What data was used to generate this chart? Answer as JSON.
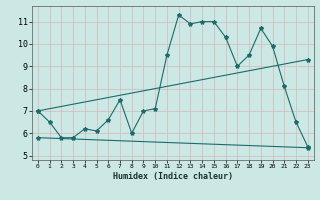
{
  "title": "",
  "xlabel": "Humidex (Indice chaleur)",
  "background_color": "#cce8e4",
  "grid_color": "#b8d8d4",
  "line_color": "#1a6b6b",
  "x_ticks": [
    0,
    1,
    2,
    3,
    4,
    5,
    6,
    7,
    8,
    9,
    10,
    11,
    12,
    13,
    14,
    15,
    16,
    17,
    18,
    19,
    20,
    21,
    22,
    23
  ],
  "y_ticks": [
    5,
    6,
    7,
    8,
    9,
    10,
    11
  ],
  "ylim": [
    4.8,
    11.7
  ],
  "xlim": [
    -0.5,
    23.5
  ],
  "series1": [
    7.0,
    6.5,
    5.8,
    5.8,
    6.2,
    6.1,
    6.6,
    7.5,
    6.0,
    7.0,
    7.1,
    9.5,
    11.3,
    10.9,
    11.0,
    11.0,
    10.3,
    9.0,
    9.5,
    10.7,
    9.9,
    8.1,
    6.5,
    5.4
  ],
  "series2_x": [
    0,
    23
  ],
  "series2_y": [
    7.0,
    9.3
  ],
  "series3_x": [
    0,
    23
  ],
  "series3_y": [
    5.8,
    5.35
  ],
  "marker": "*",
  "markersize": 3.0,
  "linewidth": 0.8
}
